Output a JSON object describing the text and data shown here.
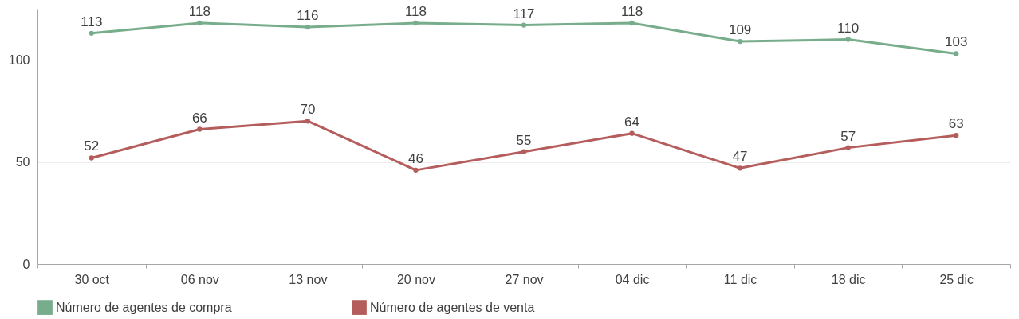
{
  "chart_data": {
    "type": "line",
    "categories": [
      "30 oct",
      "06 nov",
      "13 nov",
      "20 nov",
      "27 nov",
      "04 dic",
      "11 dic",
      "18 dic",
      "25 dic"
    ],
    "series": [
      {
        "name": "Número de agentes de compra",
        "color": "#78ad8c",
        "values": [
          113,
          118,
          116,
          118,
          117,
          118,
          109,
          110,
          103
        ]
      },
      {
        "name": "Número de agentes de  venta",
        "color": "#b55d5d",
        "values": [
          52,
          66,
          70,
          46,
          55,
          64,
          47,
          57,
          63
        ]
      }
    ],
    "ylim": [
      0,
      125
    ],
    "yticks": [
      0,
      50,
      100
    ],
    "grid": "y",
    "legend": "bottom",
    "marker": "circle",
    "line_style": "solid",
    "data_labels": true
  }
}
